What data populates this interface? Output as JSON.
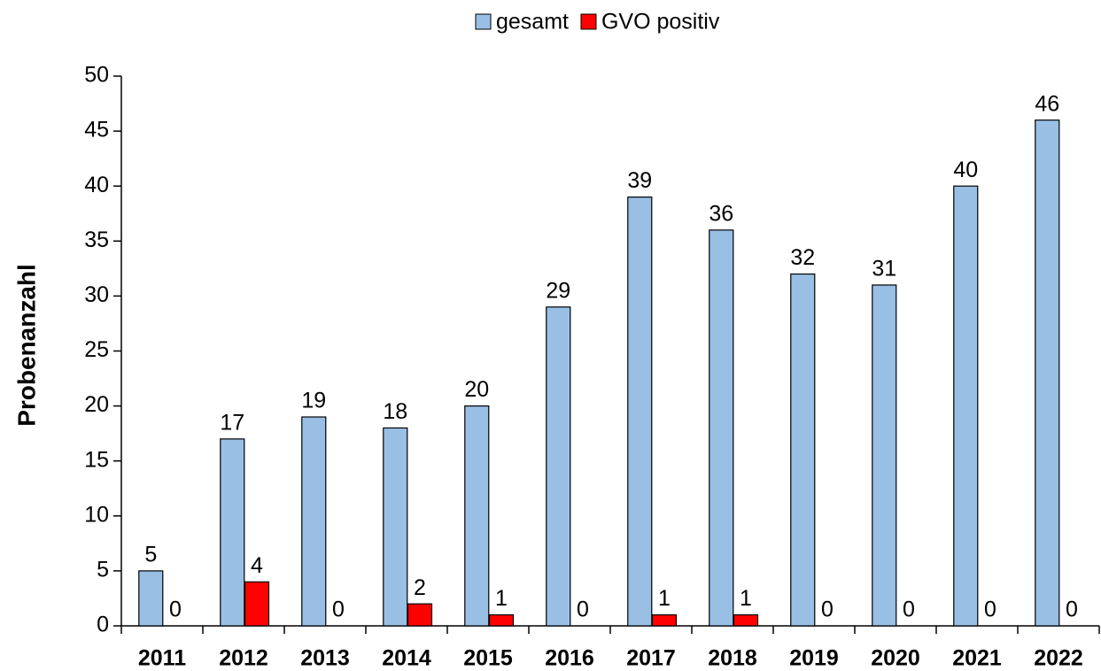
{
  "chart_data": {
    "type": "bar",
    "y_label": "Probenanzahl",
    "categories": [
      "2011",
      "2012",
      "2013",
      "2014",
      "2015",
      "2016",
      "2017",
      "2018",
      "2019",
      "2020",
      "2021",
      "2022"
    ],
    "series": [
      {
        "name": "gesamt",
        "color": "#99bfe5",
        "values": [
          5,
          17,
          19,
          18,
          20,
          29,
          39,
          36,
          32,
          31,
          40,
          46
        ]
      },
      {
        "name": "GVO positiv",
        "color": "#ff0000",
        "values": [
          0,
          4,
          0,
          2,
          1,
          0,
          1,
          1,
          0,
          0,
          0,
          0
        ]
      }
    ],
    "ylim": [
      0,
      50
    ],
    "yticks": [
      0,
      5,
      10,
      15,
      20,
      25,
      30,
      35,
      40,
      45,
      50
    ],
    "grid": false,
    "legend": "top"
  }
}
